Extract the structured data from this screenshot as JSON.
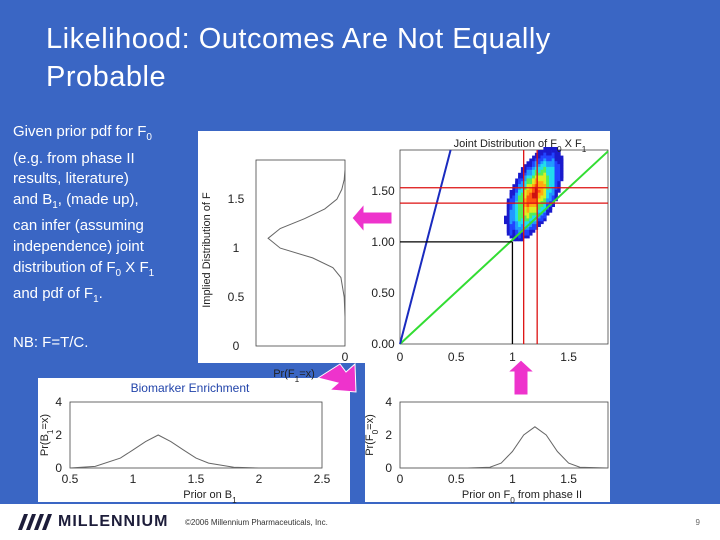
{
  "slide": {
    "title_line1": "Likelihood: Outcomes Are Not Equally",
    "title_line2": "Probable",
    "body_lines": [
      {
        "pre": "Given prior pdf for F",
        "sub": "0",
        "post": ""
      },
      {
        "pre": "(e.g. from phase II",
        "sub": "",
        "post": ""
      },
      {
        "pre": "results, literature)",
        "sub": "",
        "post": ""
      },
      {
        "pre": "and B",
        "sub": "1",
        "post": ", (made up),"
      },
      {
        "pre": "can infer (assuming",
        "sub": "",
        "post": ""
      },
      {
        "pre": "independence) joint",
        "sub": "",
        "post": ""
      },
      {
        "pre": "distribution of F",
        "sub": "0",
        "post": " X F"
      },
      {
        "pre": "and pdf of F",
        "sub": "1",
        "post": "."
      }
    ],
    "body_line7_tail_sub": "1",
    "nb_text": "NB: F=T/C."
  },
  "footer": {
    "logo_text": "MILLENNIUM",
    "copyright": "©2006 Millennium Pharmaceuticals, Inc.",
    "page_number": "9"
  },
  "chart_data": [
    {
      "type": "line",
      "name": "implied-distribution",
      "ylabel": "Implied Distribution of F",
      "xlabel": "Pr(F1=x)",
      "yticks": [
        "1.5",
        "1",
        "0.5",
        "0"
      ],
      "xticks": [
        "0"
      ],
      "ylim": [
        0,
        1.9
      ],
      "y": [
        0.3,
        0.5,
        0.7,
        0.8,
        0.9,
        1.0,
        1.1,
        1.2,
        1.3,
        1.4,
        1.5,
        1.6,
        1.7,
        1.8
      ],
      "x": [
        0.0,
        0.01,
        0.05,
        0.15,
        0.4,
        0.8,
        0.95,
        0.8,
        0.5,
        0.25,
        0.1,
        0.04,
        0.01,
        0.0
      ]
    },
    {
      "type": "heatmap",
      "name": "joint-distribution",
      "title_pre": "Joint Distribution of F",
      "title_sub0": "0",
      "title_mid": " X F",
      "title_sub1": "1",
      "xticks": [
        "0",
        "0.5",
        "1",
        "1.5"
      ],
      "yticks": [
        "1.50",
        "1.00",
        "0.50",
        "0.00"
      ],
      "xlim": [
        0,
        1.85
      ],
      "ylim": [
        0,
        1.9
      ],
      "vertical_lines_x": [
        1.0,
        1.1,
        1.2
      ],
      "horizontal_lines_y": [
        1.0,
        1.4,
        1.5
      ],
      "center": [
        1.18,
        1.45
      ],
      "colors": {
        "line_blue": "#1a2bbf",
        "line_green": "#33dd33",
        "marker": "#dd1111"
      }
    },
    {
      "type": "line",
      "name": "prior-b1",
      "ylabel_pre": "Pr(B",
      "ylabel_sub": "1",
      "ylabel_post": "=x)",
      "xlabel_pre": "Prior on B",
      "xlabel_sub": "1",
      "xticks": [
        "0.5",
        "1",
        "1.5",
        "2",
        "2.5"
      ],
      "yticks": [
        "4",
        "2",
        "0"
      ],
      "xlim": [
        0.5,
        2.5
      ],
      "ylim": [
        0,
        4
      ],
      "x": [
        0.5,
        0.7,
        0.9,
        1.0,
        1.1,
        1.2,
        1.3,
        1.4,
        1.5,
        1.6,
        1.8,
        2.0,
        2.5
      ],
      "y": [
        0.0,
        0.1,
        0.6,
        1.1,
        1.6,
        2.0,
        1.6,
        1.1,
        0.6,
        0.3,
        0.05,
        0.0,
        0.0
      ],
      "caption": "Biomarker Enrichment"
    },
    {
      "type": "line",
      "name": "prior-f0",
      "ylabel_pre": "Pr(F",
      "ylabel_sub": "0",
      "ylabel_post": "=x)",
      "xlabel_pre": "Prior on F",
      "xlabel_sub": "0",
      "xlabel_post": " from phase II",
      "xticks": [
        "0",
        "0.5",
        "1",
        "1.5"
      ],
      "yticks": [
        "4",
        "2",
        "0"
      ],
      "xlim": [
        0,
        1.85
      ],
      "ylim": [
        0,
        4
      ],
      "x": [
        0,
        0.6,
        0.8,
        0.9,
        1.0,
        1.1,
        1.2,
        1.3,
        1.4,
        1.5,
        1.6,
        1.85
      ],
      "y": [
        0,
        0.0,
        0.05,
        0.3,
        1.0,
        2.0,
        2.5,
        2.0,
        1.0,
        0.3,
        0.05,
        0.0
      ]
    }
  ]
}
